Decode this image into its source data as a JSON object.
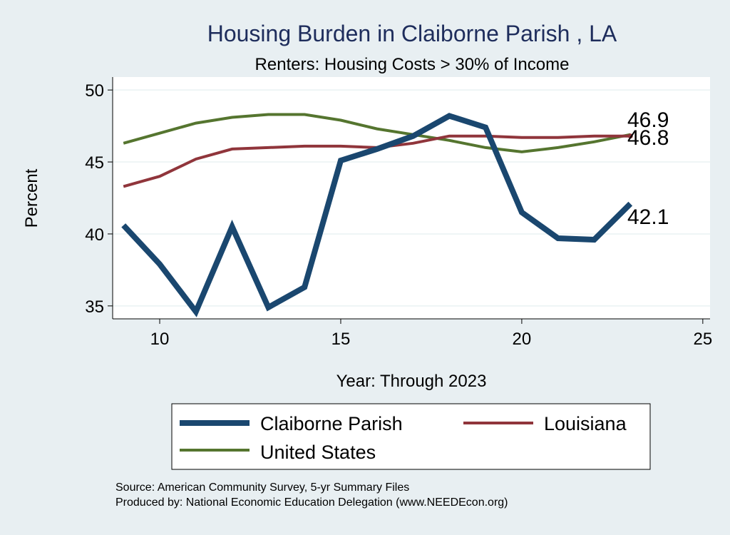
{
  "chart_data": {
    "type": "line",
    "title": "Housing Burden in Claiborne Parish , LA",
    "subtitle": "Renters: Housing Costs > 30% of Income",
    "xlabel": "Year: Through 2023",
    "ylabel": "Percent",
    "xlim": [
      8.7,
      25.2
    ],
    "ylim": [
      34.1,
      50.9
    ],
    "xticks": [
      10,
      15,
      20,
      25
    ],
    "yticks": [
      35,
      40,
      45,
      50
    ],
    "grid": "horizontal",
    "legend_position": "bottom",
    "x": [
      9,
      10,
      11,
      12,
      13,
      14,
      15,
      16,
      17,
      18,
      19,
      20,
      21,
      22,
      23
    ],
    "series": [
      {
        "name": "Claiborne Parish",
        "color": "#1a476f",
        "values": [
          40.6,
          37.9,
          34.6,
          40.5,
          34.9,
          36.3,
          45.1,
          45.9,
          46.8,
          48.2,
          47.4,
          41.5,
          39.7,
          39.6,
          42.1
        ],
        "end_label": "42.1"
      },
      {
        "name": "Louisiana",
        "color": "#90353b",
        "values": [
          43.3,
          44.0,
          45.2,
          45.9,
          46.0,
          46.1,
          46.1,
          46.0,
          46.3,
          46.8,
          46.8,
          46.7,
          46.7,
          46.8,
          46.8
        ],
        "end_label": "46.8"
      },
      {
        "name": "United States",
        "color": "#55752f",
        "values": [
          46.3,
          47.0,
          47.7,
          48.1,
          48.3,
          48.3,
          47.9,
          47.3,
          46.9,
          46.5,
          46.0,
          45.7,
          46.0,
          46.4,
          46.9
        ],
        "end_label": "46.9"
      }
    ],
    "source_note": "Source: American Community Survey, 5-yr Summary Files",
    "producer_note": "Produced by: National Economic Education Delegation (www.NEEDEcon.org)"
  }
}
